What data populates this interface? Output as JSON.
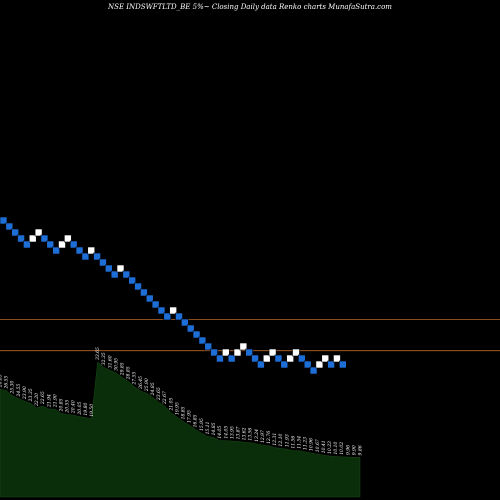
{
  "chart_data": {
    "type": "renko",
    "title": "NSE INDSWFTLTD_BE 5%~  Closing Daily data  Renko  charts MunafaSutra.com",
    "colors": {
      "background": "#000000",
      "up_brick": "#ffffff",
      "down_brick": "#1e6ed8",
      "reference_line": "#b8682a",
      "volume_area": "#0a2e0a"
    },
    "bricks": [
      {
        "col": 0,
        "row": 0,
        "dir": "down"
      },
      {
        "col": 1,
        "row": 1,
        "dir": "down"
      },
      {
        "col": 2,
        "row": 2,
        "dir": "down"
      },
      {
        "col": 3,
        "row": 3,
        "dir": "down"
      },
      {
        "col": 4,
        "row": 4,
        "dir": "down"
      },
      {
        "col": 5,
        "row": 3,
        "dir": "up"
      },
      {
        "col": 6,
        "row": 2,
        "dir": "up"
      },
      {
        "col": 7,
        "row": 3,
        "dir": "down"
      },
      {
        "col": 8,
        "row": 4,
        "dir": "down"
      },
      {
        "col": 9,
        "row": 5,
        "dir": "down"
      },
      {
        "col": 10,
        "row": 4,
        "dir": "up"
      },
      {
        "col": 11,
        "row": 3,
        "dir": "up"
      },
      {
        "col": 12,
        "row": 4,
        "dir": "down"
      },
      {
        "col": 13,
        "row": 5,
        "dir": "down"
      },
      {
        "col": 14,
        "row": 6,
        "dir": "down"
      },
      {
        "col": 15,
        "row": 5,
        "dir": "up"
      },
      {
        "col": 16,
        "row": 6,
        "dir": "down"
      },
      {
        "col": 17,
        "row": 7,
        "dir": "down"
      },
      {
        "col": 18,
        "row": 8,
        "dir": "down"
      },
      {
        "col": 19,
        "row": 9,
        "dir": "down"
      },
      {
        "col": 20,
        "row": 8,
        "dir": "up"
      },
      {
        "col": 21,
        "row": 9,
        "dir": "down"
      },
      {
        "col": 22,
        "row": 10,
        "dir": "down"
      },
      {
        "col": 23,
        "row": 11,
        "dir": "down"
      },
      {
        "col": 24,
        "row": 12,
        "dir": "down"
      },
      {
        "col": 25,
        "row": 13,
        "dir": "down"
      },
      {
        "col": 26,
        "row": 14,
        "dir": "down"
      },
      {
        "col": 27,
        "row": 15,
        "dir": "down"
      },
      {
        "col": 28,
        "row": 16,
        "dir": "down"
      },
      {
        "col": 29,
        "row": 15,
        "dir": "up"
      },
      {
        "col": 30,
        "row": 16,
        "dir": "down"
      },
      {
        "col": 31,
        "row": 17,
        "dir": "down"
      },
      {
        "col": 32,
        "row": 18,
        "dir": "down"
      },
      {
        "col": 33,
        "row": 19,
        "dir": "down"
      },
      {
        "col": 34,
        "row": 20,
        "dir": "down"
      },
      {
        "col": 35,
        "row": 21,
        "dir": "down"
      },
      {
        "col": 36,
        "row": 22,
        "dir": "down"
      },
      {
        "col": 37,
        "row": 23,
        "dir": "down"
      },
      {
        "col": 38,
        "row": 22,
        "dir": "up"
      },
      {
        "col": 39,
        "row": 23,
        "dir": "down"
      },
      {
        "col": 40,
        "row": 22,
        "dir": "up"
      },
      {
        "col": 41,
        "row": 21,
        "dir": "up"
      },
      {
        "col": 42,
        "row": 22,
        "dir": "down"
      },
      {
        "col": 43,
        "row": 23,
        "dir": "down"
      },
      {
        "col": 44,
        "row": 24,
        "dir": "down"
      },
      {
        "col": 45,
        "row": 23,
        "dir": "up"
      },
      {
        "col": 46,
        "row": 22,
        "dir": "up"
      },
      {
        "col": 47,
        "row": 23,
        "dir": "down"
      },
      {
        "col": 48,
        "row": 24,
        "dir": "down"
      },
      {
        "col": 49,
        "row": 23,
        "dir": "up"
      },
      {
        "col": 50,
        "row": 22,
        "dir": "up"
      },
      {
        "col": 51,
        "row": 23,
        "dir": "down"
      },
      {
        "col": 52,
        "row": 24,
        "dir": "down"
      },
      {
        "col": 53,
        "row": 25,
        "dir": "down"
      },
      {
        "col": 54,
        "row": 24,
        "dir": "up"
      },
      {
        "col": 55,
        "row": 23,
        "dir": "up"
      },
      {
        "col": 56,
        "row": 24,
        "dir": "down"
      },
      {
        "col": 57,
        "row": 23,
        "dir": "up"
      },
      {
        "col": 58,
        "row": 24,
        "dir": "down"
      }
    ],
    "reference_lines": [
      {
        "name": "upper-reference-line",
        "row": 16.5
      },
      {
        "name": "lower-reference-line",
        "row": 21.7
      }
    ],
    "volume_labels": [
      "26.85",
      "26.55",
      "25.30",
      "24.55",
      "23.90",
      "23.35",
      "22.20",
      "22.65",
      "21.94",
      "21.90",
      "20.85",
      "20.55",
      "20.40",
      "20.05",
      "19.80",
      "19.50",
      "33.65",
      "32.35",
      "31.60",
      "30.95",
      "29.85",
      "28.85",
      "27.55",
      "26.45",
      "25.90",
      "24.85",
      "23.65",
      "22.67",
      "21.05",
      "19.95",
      "18.85",
      "17.95",
      "16.85",
      "15.95",
      "15.11",
      "14.85",
      "14.05",
      "14.05",
      "13.95",
      "13.87",
      "13.62",
      "13.56",
      "13.24",
      "12.97",
      "12.76",
      "12.31",
      "12.10",
      "11.93",
      "11.56",
      "11.54",
      "11.23",
      "10.96",
      "10.67",
      "10.41",
      "10.23",
      "10.10",
      "10.02",
      "9.96",
      "9.90",
      "9.86"
    ]
  }
}
